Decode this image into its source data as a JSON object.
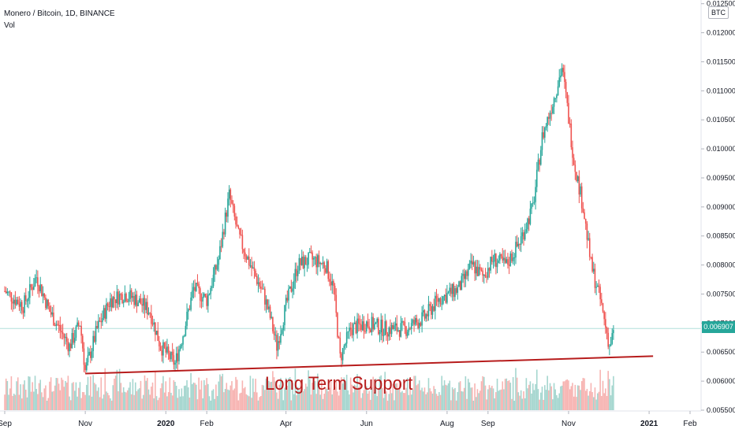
{
  "legend": {
    "symbol": "Monero / Bitcoin, 1D, BINANCE",
    "volume_label": "Vol"
  },
  "currency": "BTC",
  "last_price": "0.006907",
  "annotation": "Long Term Support",
  "colors": {
    "up": "#26a69a",
    "down": "#ef5350",
    "up_vol": "#a5d6cf",
    "down_vol": "#f7b4b2",
    "support_line": "#b71c1c",
    "last_price_line": "#b2dfdb"
  },
  "chart_data": {
    "type": "candlestick",
    "title": "Monero / Bitcoin, 1D, BINANCE",
    "y_axis": {
      "ticks": [
        "0.005500",
        "0.006000",
        "0.006500",
        "0.007000",
        "0.007500",
        "0.008000",
        "0.008500",
        "0.009000",
        "0.009500",
        "0.010000",
        "0.010500",
        "0.011000",
        "0.011500",
        "0.012000",
        "0.012500"
      ],
      "range": [
        0.0055,
        0.01255
      ]
    },
    "x_axis": {
      "ticks": [
        "Sep",
        "Nov",
        "2020",
        "Feb",
        "Apr",
        "Jun",
        "Aug",
        "Sep",
        "Nov",
        "2021",
        "Feb"
      ]
    },
    "price_path": [
      [
        "2019-09-01",
        0.00755
      ],
      [
        "2019-09-15",
        0.0073
      ],
      [
        "2019-09-25",
        0.0078
      ],
      [
        "2019-10-05",
        0.0072
      ],
      [
        "2019-10-20",
        0.0066
      ],
      [
        "2019-10-28",
        0.007
      ],
      [
        "2019-11-01",
        0.00618
      ],
      [
        "2019-11-10",
        0.0069
      ],
      [
        "2019-11-20",
        0.0074
      ],
      [
        "2019-12-01",
        0.0075
      ],
      [
        "2019-12-10",
        0.0074
      ],
      [
        "2019-12-20",
        0.0072
      ],
      [
        "2019-12-28",
        0.0066
      ],
      [
        "2020-01-08",
        0.0063
      ],
      [
        "2020-01-15",
        0.0069
      ],
      [
        "2020-01-22",
        0.0076
      ],
      [
        "2020-02-01",
        0.0074
      ],
      [
        "2020-02-10",
        0.0081
      ],
      [
        "2020-02-15",
        0.0088
      ],
      [
        "2020-02-18",
        0.0092
      ],
      [
        "2020-02-25",
        0.0085
      ],
      [
        "2020-03-05",
        0.008
      ],
      [
        "2020-03-15",
        0.0075
      ],
      [
        "2020-03-20",
        0.0071
      ],
      [
        "2020-03-25",
        0.0066
      ],
      [
        "2020-04-01",
        0.0073
      ],
      [
        "2020-04-10",
        0.008
      ],
      [
        "2020-04-20",
        0.0081
      ],
      [
        "2020-05-01",
        0.008
      ],
      [
        "2020-05-07",
        0.0076
      ],
      [
        "2020-05-12",
        0.0064
      ],
      [
        "2020-05-20",
        0.0069
      ],
      [
        "2020-06-01",
        0.007
      ],
      [
        "2020-06-15",
        0.0069
      ],
      [
        "2020-07-01",
        0.0069
      ],
      [
        "2020-07-15",
        0.0071
      ],
      [
        "2020-07-25",
        0.0074
      ],
      [
        "2020-08-10",
        0.0076
      ],
      [
        "2020-08-20",
        0.008
      ],
      [
        "2020-08-28",
        0.0078
      ],
      [
        "2020-09-05",
        0.0081
      ],
      [
        "2020-09-15",
        0.008
      ],
      [
        "2020-09-25",
        0.0084
      ],
      [
        "2020-10-05",
        0.009
      ],
      [
        "2020-10-12",
        0.0102
      ],
      [
        "2020-10-20",
        0.0108
      ],
      [
        "2020-10-27",
        0.0114
      ],
      [
        "2020-10-30",
        0.0109
      ],
      [
        "2020-11-05",
        0.0098
      ],
      [
        "2020-11-12",
        0.009
      ],
      [
        "2020-11-18",
        0.008
      ],
      [
        "2020-11-25",
        0.0074
      ],
      [
        "2020-12-02",
        0.0066
      ],
      [
        "2020-12-06",
        0.0069
      ]
    ],
    "support_line": [
      [
        "2019-11-01",
        0.00613
      ],
      [
        "2021-01-04",
        0.00643
      ]
    ]
  }
}
